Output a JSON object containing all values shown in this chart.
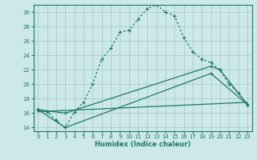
{
  "xlabel": "Humidex (Indice chaleur)",
  "background_color": "#cde8e8",
  "grid_color": "#afd0d0",
  "line_color": "#1a7a6a",
  "xlim": [
    -0.5,
    23.5
  ],
  "ylim": [
    13.5,
    31.0
  ],
  "yticks": [
    14,
    16,
    18,
    20,
    22,
    24,
    26,
    28,
    30
  ],
  "xticks": [
    0,
    1,
    2,
    3,
    4,
    5,
    6,
    7,
    8,
    9,
    10,
    11,
    12,
    13,
    14,
    15,
    16,
    17,
    18,
    19,
    20,
    21,
    22,
    23
  ],
  "line1_x": [
    0,
    1,
    2,
    3,
    4,
    5,
    6,
    7,
    8,
    9,
    10,
    11,
    12,
    13,
    14,
    15,
    16,
    17,
    18,
    19,
    20,
    21,
    22,
    23
  ],
  "line1_y": [
    16.5,
    16.2,
    15.0,
    14.0,
    16.2,
    17.5,
    20.0,
    23.5,
    25.0,
    27.2,
    27.5,
    29.0,
    30.5,
    31.0,
    30.0,
    29.5,
    26.5,
    24.5,
    23.5,
    23.0,
    22.0,
    20.0,
    18.8,
    17.2
  ],
  "line2_x": [
    0,
    3,
    19,
    20,
    23
  ],
  "line2_y": [
    16.5,
    16.0,
    22.5,
    22.0,
    17.2
  ],
  "line3_x": [
    0,
    3,
    19,
    23
  ],
  "line3_y": [
    16.5,
    14.0,
    21.5,
    17.2
  ],
  "line4_x": [
    0,
    23
  ],
  "line4_y": [
    16.2,
    17.5
  ]
}
